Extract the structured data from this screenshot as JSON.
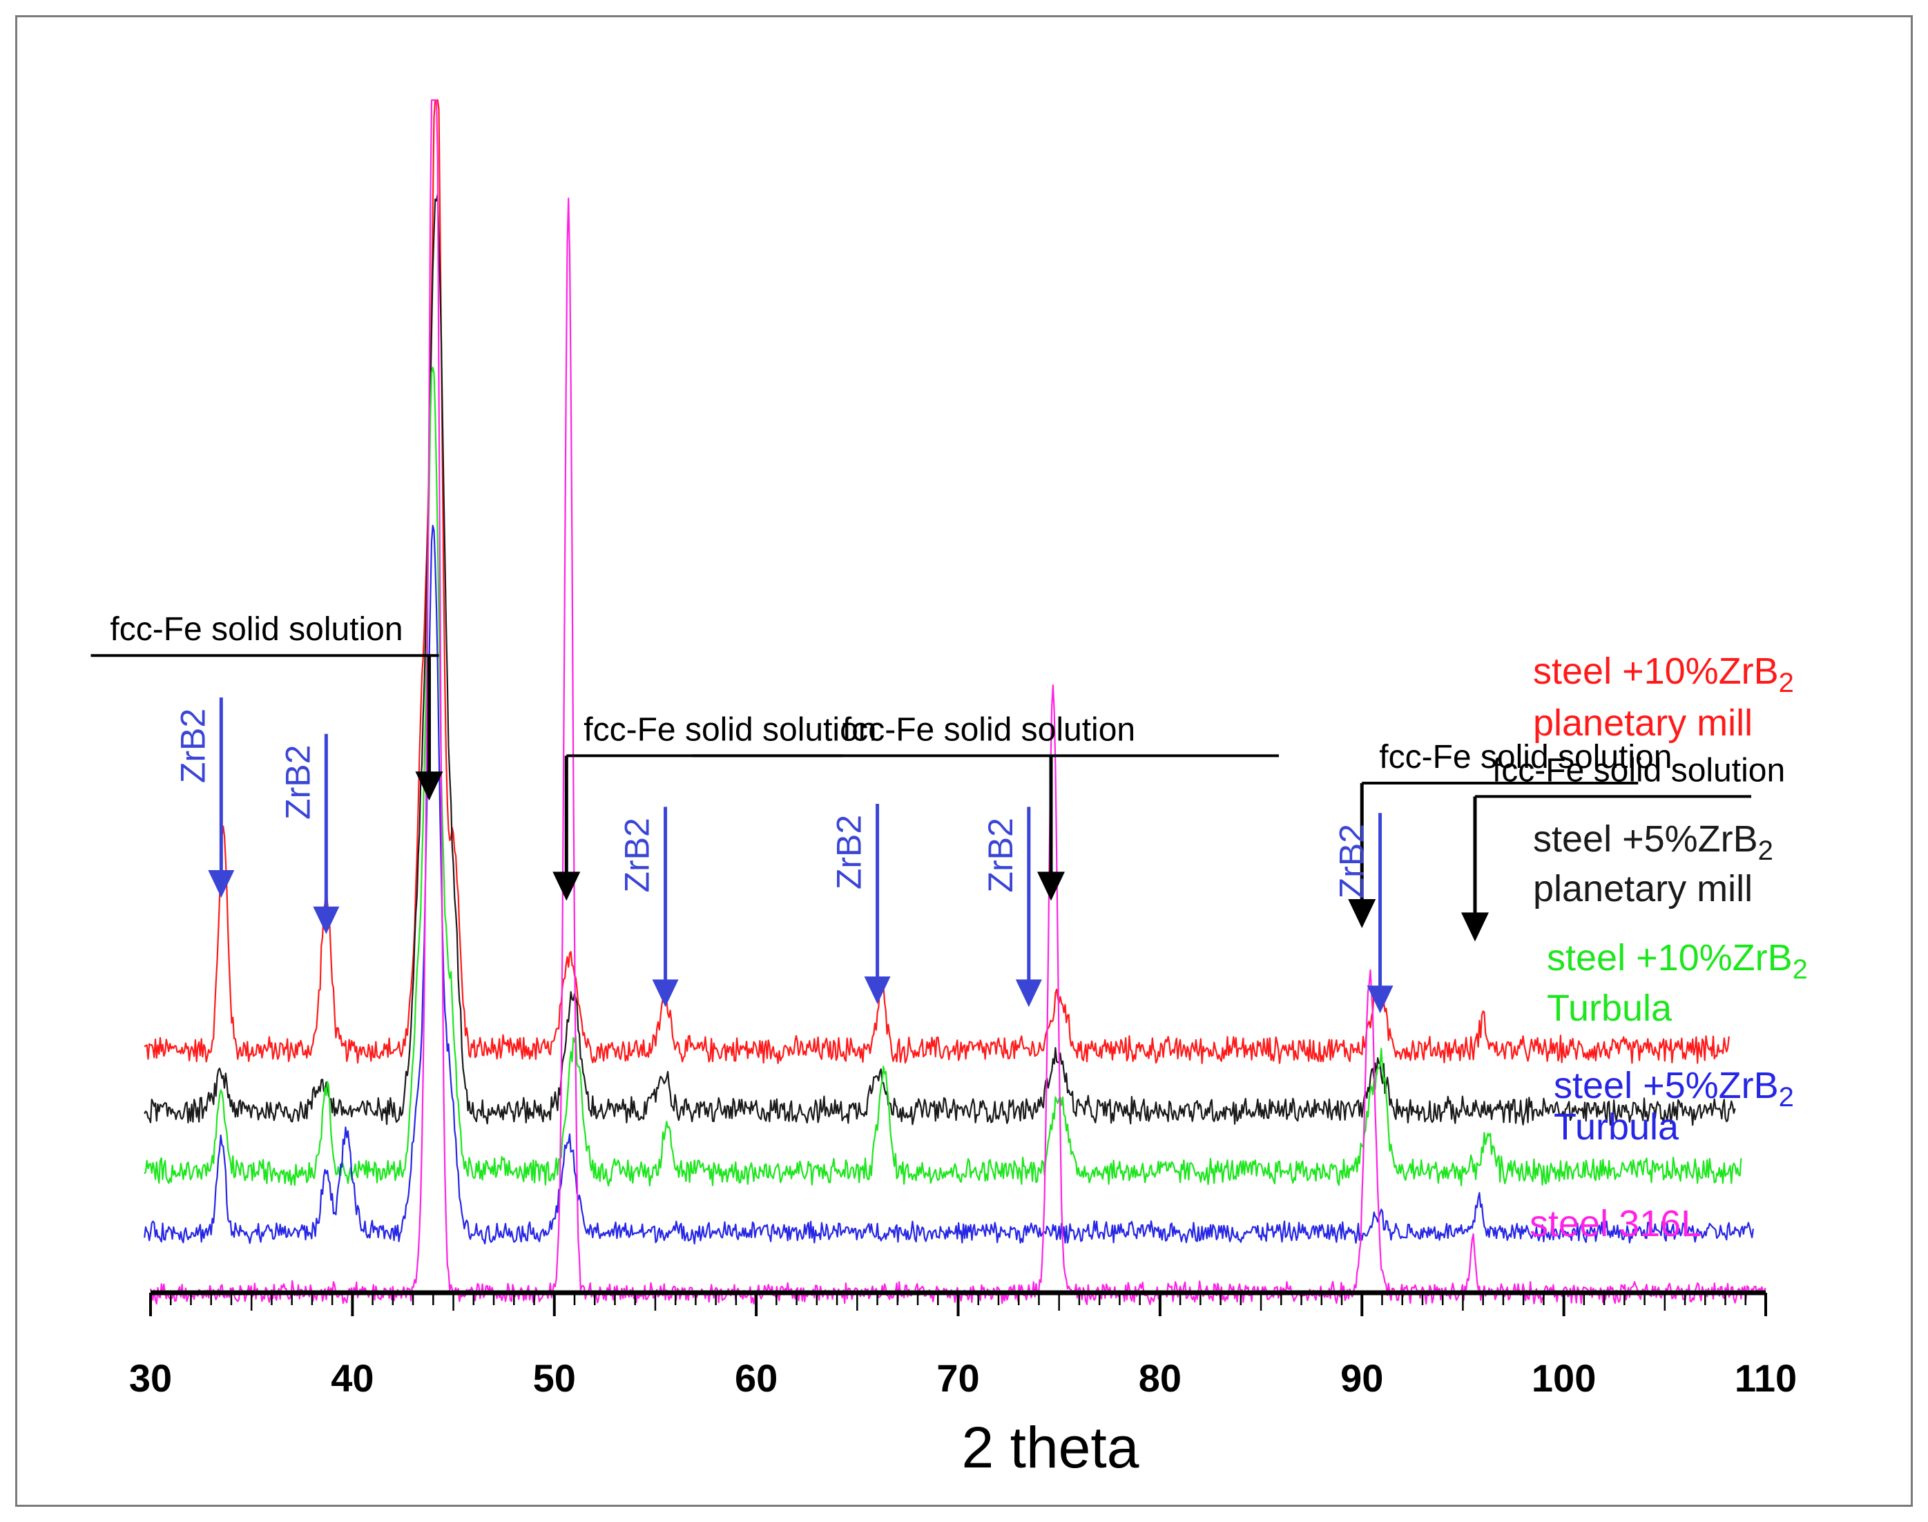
{
  "chart_data": {
    "type": "line",
    "title": "",
    "xlabel": "2 theta",
    "ylabel": "",
    "xlim": [
      30,
      110
    ],
    "x_ticks": [
      "30",
      "40",
      "50",
      "60",
      "70",
      "80",
      "90",
      "100",
      "110"
    ],
    "legend_position": "right",
    "series": [
      {
        "name": "steel +10%ZrB2 planetary mill",
        "label_line1_prefix": "steel +10%ZrB",
        "label_subscript": "2",
        "label_line2": "planetary mill",
        "color": "#ff1a1a",
        "offset": 4,
        "x_end": 108.2,
        "noise": 0.18,
        "peaks": [
          {
            "x": 33.6,
            "h": 3.6,
            "w": 0.22
          },
          {
            "x": 38.7,
            "h": 2.5,
            "w": 0.25
          },
          {
            "x": 43.6,
            "h": 6.5,
            "w": 0.35
          },
          {
            "x": 44.2,
            "h": 15.0,
            "w": 0.25
          },
          {
            "x": 45.0,
            "h": 3.5,
            "w": 0.28
          },
          {
            "x": 50.8,
            "h": 1.6,
            "w": 0.35
          },
          {
            "x": 55.5,
            "h": 0.9,
            "w": 0.25
          },
          {
            "x": 66.2,
            "h": 1.0,
            "w": 0.2
          },
          {
            "x": 75.0,
            "h": 0.9,
            "w": 0.35
          },
          {
            "x": 90.8,
            "h": 0.9,
            "w": 0.35
          },
          {
            "x": 96.0,
            "h": 0.5,
            "w": 0.2
          }
        ]
      },
      {
        "name": "steel +5%ZrB2 planetary mill",
        "label_line1_prefix": "steel +5%ZrB",
        "label_subscript": "2",
        "label_line2": "planetary mill",
        "color": "#1a1a1a",
        "offset": 3,
        "x_end": 108.5,
        "noise": 0.18,
        "peaks": [
          {
            "x": 33.5,
            "h": 0.6,
            "w": 0.3
          },
          {
            "x": 38.5,
            "h": 0.5,
            "w": 0.3
          },
          {
            "x": 43.5,
            "h": 4.5,
            "w": 0.4
          },
          {
            "x": 44.2,
            "h": 14.0,
            "w": 0.35
          },
          {
            "x": 45.0,
            "h": 3.0,
            "w": 0.3
          },
          {
            "x": 50.9,
            "h": 1.9,
            "w": 0.35
          },
          {
            "x": 55.4,
            "h": 0.6,
            "w": 0.3
          },
          {
            "x": 66.0,
            "h": 0.7,
            "w": 0.3
          },
          {
            "x": 74.9,
            "h": 0.9,
            "w": 0.4
          },
          {
            "x": 90.8,
            "h": 0.7,
            "w": 0.4
          }
        ]
      },
      {
        "name": "steel +10%ZrB2 Turbula",
        "label_line1_prefix": "steel +10%ZrB",
        "label_subscript": "2",
        "label_line2": "Turbula",
        "color": "#1ee61e",
        "offset": 2,
        "x_end": 108.8,
        "noise": 0.18,
        "peaks": [
          {
            "x": 33.5,
            "h": 1.2,
            "w": 0.22
          },
          {
            "x": 38.7,
            "h": 1.4,
            "w": 0.22
          },
          {
            "x": 43.3,
            "h": 3.0,
            "w": 0.3
          },
          {
            "x": 44.0,
            "h": 13.0,
            "w": 0.3
          },
          {
            "x": 44.8,
            "h": 3.0,
            "w": 0.3
          },
          {
            "x": 51.0,
            "h": 2.1,
            "w": 0.35
          },
          {
            "x": 55.6,
            "h": 0.9,
            "w": 0.2
          },
          {
            "x": 66.3,
            "h": 1.7,
            "w": 0.25
          },
          {
            "x": 75.0,
            "h": 1.3,
            "w": 0.35
          },
          {
            "x": 90.5,
            "h": 1.1,
            "w": 0.35
          },
          {
            "x": 91.0,
            "h": 1.4,
            "w": 0.25
          },
          {
            "x": 96.2,
            "h": 0.5,
            "w": 0.3
          }
        ]
      },
      {
        "name": "steel +5%ZrB2 Turbula",
        "label_line1_prefix": "steel +5%ZrB",
        "label_subscript": "2",
        "label_line2": "Turbula",
        "color": "#2626e6",
        "offset": 1,
        "x_end": 109.4,
        "noise": 0.14,
        "peaks": [
          {
            "x": 33.5,
            "h": 1.5,
            "w": 0.2
          },
          {
            "x": 38.7,
            "h": 1.0,
            "w": 0.22
          },
          {
            "x": 39.7,
            "h": 1.6,
            "w": 0.3
          },
          {
            "x": 43.2,
            "h": 1.9,
            "w": 0.3
          },
          {
            "x": 44.0,
            "h": 11.5,
            "w": 0.3
          },
          {
            "x": 44.8,
            "h": 2.5,
            "w": 0.3
          },
          {
            "x": 50.7,
            "h": 1.5,
            "w": 0.35
          },
          {
            "x": 90.8,
            "h": 0.3,
            "w": 0.3
          },
          {
            "x": 95.8,
            "h": 0.6,
            "w": 0.15
          }
        ]
      },
      {
        "name": "steel 316L",
        "label_line1_prefix": "steel 316L",
        "label_subscript": "",
        "label_line2": "",
        "color": "#ff22e6",
        "offset": 0,
        "x_end": 110,
        "noise": 0.14,
        "peaks": [
          {
            "x": 43.9,
            "h": 9.0,
            "w": 0.28
          },
          {
            "x": 44.1,
            "h": 16.0,
            "w": 0.22
          },
          {
            "x": 50.7,
            "h": 18.0,
            "w": 0.2
          },
          {
            "x": 74.7,
            "h": 10.0,
            "w": 0.22
          },
          {
            "x": 90.4,
            "h": 5.3,
            "w": 0.25
          },
          {
            "x": 95.5,
            "h": 0.9,
            "w": 0.12
          }
        ]
      }
    ],
    "annotations": [
      {
        "text": "fcc-Fe solid solution",
        "color": "#000000",
        "target_x": 43.8,
        "tip": 8.1,
        "orientation": "horizontal",
        "text_side": "left"
      },
      {
        "text": "fcc-Fe solid solution",
        "color": "#000000",
        "target_x": 50.6,
        "tip": 6.45,
        "orientation": "horizontal",
        "text_side": "right"
      },
      {
        "text": "fcc-Fe solid solution",
        "color": "#000000",
        "target_x": 74.6,
        "tip": 6.45,
        "orientation": "horizontal",
        "text_side": "left"
      },
      {
        "text": "fcc-Fe solid solution",
        "color": "#000000",
        "target_x": 90.0,
        "tip": 6.0,
        "orientation": "horizontal",
        "text_side": "right"
      },
      {
        "text": "fcc-Fe solid solution",
        "color": "#000000",
        "target_x": 95.6,
        "tip": 5.78,
        "orientation": "horizontal",
        "text_side": "right"
      },
      {
        "text": "ZrB2",
        "color": "#3a45d6",
        "target_x": 33.5,
        "tip": 6.5,
        "orientation": "vertical"
      },
      {
        "text": "ZrB2",
        "color": "#3a45d6",
        "target_x": 38.7,
        "tip": 5.9,
        "orientation": "vertical"
      },
      {
        "text": "ZrB2",
        "color": "#3a45d6",
        "target_x": 55.5,
        "tip": 4.7,
        "orientation": "vertical"
      },
      {
        "text": "ZrB2",
        "color": "#3a45d6",
        "target_x": 66.0,
        "tip": 4.75,
        "orientation": "vertical"
      },
      {
        "text": "ZrB2",
        "color": "#3a45d6",
        "target_x": 73.5,
        "tip": 4.7,
        "orientation": "vertical"
      },
      {
        "text": "ZrB2",
        "color": "#3a45d6",
        "target_x": 90.9,
        "tip": 4.6,
        "orientation": "vertical"
      }
    ]
  }
}
